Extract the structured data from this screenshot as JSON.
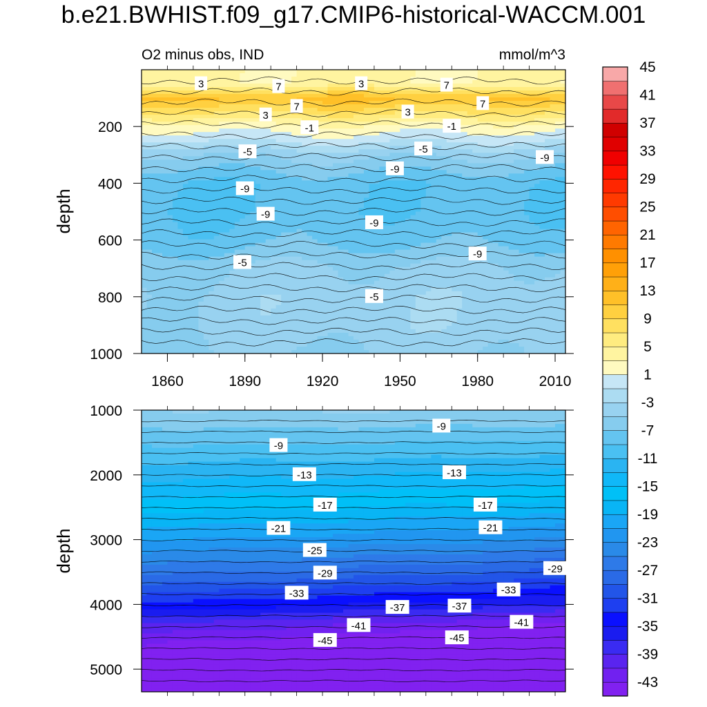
{
  "figure": {
    "title": "b.e21.BWHIST.f09_g17.CMIP6-historical-WACCM.001",
    "subtitle_left": "O2 minus obs, IND",
    "subtitle_right": "mmol/m^3",
    "ylabel": "depth"
  },
  "colors": {
    "background": "#ffffff",
    "contour_line": "#000000",
    "label_box": "#ffffff"
  },
  "chart_data": [
    {
      "type": "contour",
      "panel": "upper",
      "title": "O2 minus obs, IND",
      "units": "mmol/m^3",
      "xlabel": "",
      "ylabel": "depth",
      "xlim": [
        1850,
        2014
      ],
      "ylim": [
        1000,
        0
      ],
      "xticks": [
        1860,
        1890,
        1920,
        1950,
        1980,
        2010
      ],
      "yticks": [
        200,
        400,
        600,
        800,
        1000
      ],
      "profile": [
        {
          "depth": 50,
          "value": 3
        },
        {
          "depth": 100,
          "value": 11
        },
        {
          "depth": 150,
          "value": 7
        },
        {
          "depth": 200,
          "value": 2
        },
        {
          "depth": 250,
          "value": -1
        },
        {
          "depth": 300,
          "value": -5
        },
        {
          "depth": 400,
          "value": -9
        },
        {
          "depth": 500,
          "value": -9
        },
        {
          "depth": 600,
          "value": -8
        },
        {
          "depth": 700,
          "value": -5
        },
        {
          "depth": 800,
          "value": -4
        },
        {
          "depth": 900,
          "value": -4
        },
        {
          "depth": 1000,
          "value": -5
        }
      ],
      "contour_labels": [
        {
          "x": 1873,
          "depth": 50,
          "text": "3"
        },
        {
          "x": 1903,
          "depth": 60,
          "text": "7"
        },
        {
          "x": 1935,
          "depth": 50,
          "text": "3"
        },
        {
          "x": 1968,
          "depth": 55,
          "text": "7"
        },
        {
          "x": 1910,
          "depth": 130,
          "text": "7"
        },
        {
          "x": 1982,
          "depth": 120,
          "text": "7"
        },
        {
          "x": 1898,
          "depth": 160,
          "text": "3"
        },
        {
          "x": 1953,
          "depth": 150,
          "text": "3"
        },
        {
          "x": 1915,
          "depth": 205,
          "text": "-1"
        },
        {
          "x": 1970,
          "depth": 200,
          "text": "-1"
        },
        {
          "x": 1891,
          "depth": 290,
          "text": "-5"
        },
        {
          "x": 1959,
          "depth": 280,
          "text": "-5"
        },
        {
          "x": 2006,
          "depth": 310,
          "text": "-9"
        },
        {
          "x": 1948,
          "depth": 350,
          "text": "-9"
        },
        {
          "x": 1890,
          "depth": 420,
          "text": "-9"
        },
        {
          "x": 1898,
          "depth": 510,
          "text": "-9"
        },
        {
          "x": 1940,
          "depth": 540,
          "text": "-9"
        },
        {
          "x": 1980,
          "depth": 650,
          "text": "-9"
        },
        {
          "x": 1889,
          "depth": 680,
          "text": "-5"
        },
        {
          "x": 1940,
          "depth": 800,
          "text": "-5"
        }
      ]
    },
    {
      "type": "contour",
      "panel": "lower",
      "xlabel": "",
      "ylabel": "depth",
      "xlim": [
        1850,
        2014
      ],
      "ylim": [
        5350,
        1000
      ],
      "yticks": [
        1000,
        2000,
        3000,
        4000,
        5000
      ],
      "profile": [
        {
          "depth": 1000,
          "value": -5
        },
        {
          "depth": 1500,
          "value": -9
        },
        {
          "depth": 2000,
          "value": -13
        },
        {
          "depth": 2500,
          "value": -17
        },
        {
          "depth": 3000,
          "value": -22
        },
        {
          "depth": 3500,
          "value": -28
        },
        {
          "depth": 4000,
          "value": -35
        },
        {
          "depth": 4300,
          "value": -41
        },
        {
          "depth": 4600,
          "value": -45
        },
        {
          "depth": 5350,
          "value": -47
        }
      ],
      "contour_labels": [
        {
          "x": 1966,
          "depth": 1250,
          "text": "-9"
        },
        {
          "x": 1903,
          "depth": 1550,
          "text": "-9"
        },
        {
          "x": 1913,
          "depth": 2000,
          "text": "-13"
        },
        {
          "x": 1971,
          "depth": 1970,
          "text": "-13"
        },
        {
          "x": 1921,
          "depth": 2470,
          "text": "-17"
        },
        {
          "x": 1983,
          "depth": 2470,
          "text": "-17"
        },
        {
          "x": 1903,
          "depth": 2830,
          "text": "-21"
        },
        {
          "x": 1985,
          "depth": 2820,
          "text": "-21"
        },
        {
          "x": 1917,
          "depth": 3170,
          "text": "-25"
        },
        {
          "x": 1921,
          "depth": 3520,
          "text": "-29"
        },
        {
          "x": 2010,
          "depth": 3450,
          "text": "-29"
        },
        {
          "x": 1910,
          "depth": 3830,
          "text": "-33"
        },
        {
          "x": 1992,
          "depth": 3780,
          "text": "-33"
        },
        {
          "x": 1949,
          "depth": 4050,
          "text": "-37"
        },
        {
          "x": 1973,
          "depth": 4030,
          "text": "-37"
        },
        {
          "x": 1934,
          "depth": 4330,
          "text": "-41"
        },
        {
          "x": 1997,
          "depth": 4280,
          "text": "-41"
        },
        {
          "x": 1921,
          "depth": 4560,
          "text": "-45"
        },
        {
          "x": 1972,
          "depth": 4520,
          "text": "-45"
        }
      ]
    },
    {
      "type": "colorbar",
      "levels": [
        -45,
        -43,
        -41,
        -39,
        -37,
        -35,
        -33,
        -31,
        -29,
        -27,
        -25,
        -23,
        -21,
        -19,
        -17,
        -15,
        -13,
        -11,
        -9,
        -7,
        -5,
        -3,
        -1,
        1,
        3,
        5,
        7,
        9,
        11,
        13,
        15,
        17,
        19,
        21,
        23,
        25,
        27,
        29,
        31,
        33,
        35,
        37,
        39,
        41,
        43,
        45
      ],
      "labels": [
        "45",
        "41",
        "37",
        "33",
        "29",
        "25",
        "21",
        "17",
        "13",
        "9",
        "5",
        "1",
        "-3",
        "-7",
        "-11",
        "-15",
        "-19",
        "-23",
        "-27",
        "-31",
        "-35",
        "-39",
        "-43"
      ],
      "colors": [
        "#8121f0",
        "#7121f0",
        "#5a24ef",
        "#3a2bf2",
        "#1a1cf0",
        "#0a10ff",
        "#1e3ff0",
        "#2255e8",
        "#2a6ae6",
        "#2e7ae8",
        "#2a8ae8",
        "#2196f0",
        "#1aa6f5",
        "#09b5f5",
        "#00c0f7",
        "#10b8f8",
        "#2ab4f2",
        "#4ac0f2",
        "#64c4f0",
        "#86ccee",
        "#98d2f0",
        "#acdcf2",
        "#c6e6f6",
        "#fffac0",
        "#fff4a0",
        "#ffec80",
        "#ffe060",
        "#ffd040",
        "#ffc028",
        "#ffb018",
        "#ffa008",
        "#ff9000",
        "#ff7a00",
        "#ff6400",
        "#ff4e00",
        "#ff3a00",
        "#ff2600",
        "#ff1200",
        "#f00000",
        "#e00000",
        "#d00000",
        "#e22a2a",
        "#e84848",
        "#f07070",
        "#f8a8a8"
      ]
    }
  ]
}
